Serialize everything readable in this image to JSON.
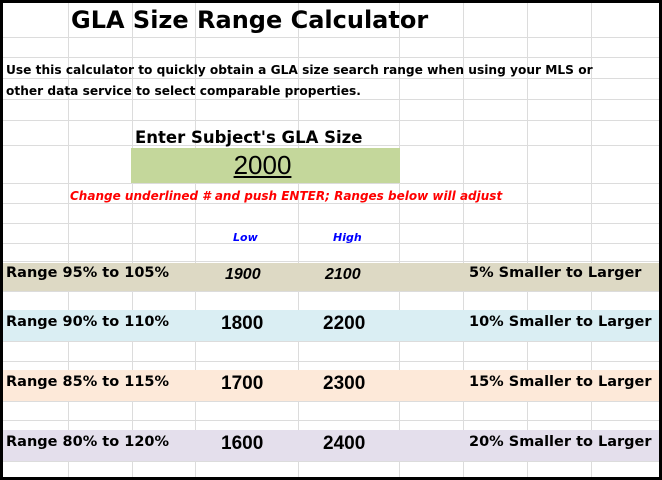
{
  "title": "GLA Size Range Calculator",
  "description_line1": "Use this calculator to quickly obtain a GLA size search range when using your MLS or",
  "description_line2": "other data service to select comparable properties.",
  "input_label": "Enter Subject's GLA Size",
  "input_value": "2000",
  "instruction": "Change underlined # and push ENTER; Ranges below will adjust",
  "col_low": "Low",
  "col_high": "High",
  "colors": {
    "input_bg": "#c4d79b",
    "instruction": "#ff0000",
    "header": "#0000ff"
  },
  "rows": [
    {
      "label": "Range 95% to 105%",
      "low": "1900",
      "high": "2100",
      "desc": "5% Smaller to Larger",
      "color": "#ddd9c4"
    },
    {
      "label": "Range 90% to 110%",
      "low": "1800",
      "high": "2200",
      "desc": "10% Smaller to Larger",
      "color": "#daeef3"
    },
    {
      "label": "Range 85% to 115%",
      "low": "1700",
      "high": "2300",
      "desc": "15% Smaller to Larger",
      "color": "#fde9d9"
    },
    {
      "label": "Range 80% to 120%",
      "low": "1600",
      "high": "2400",
      "desc": "20% Smaller to Larger",
      "color": "#e4dfec"
    }
  ]
}
